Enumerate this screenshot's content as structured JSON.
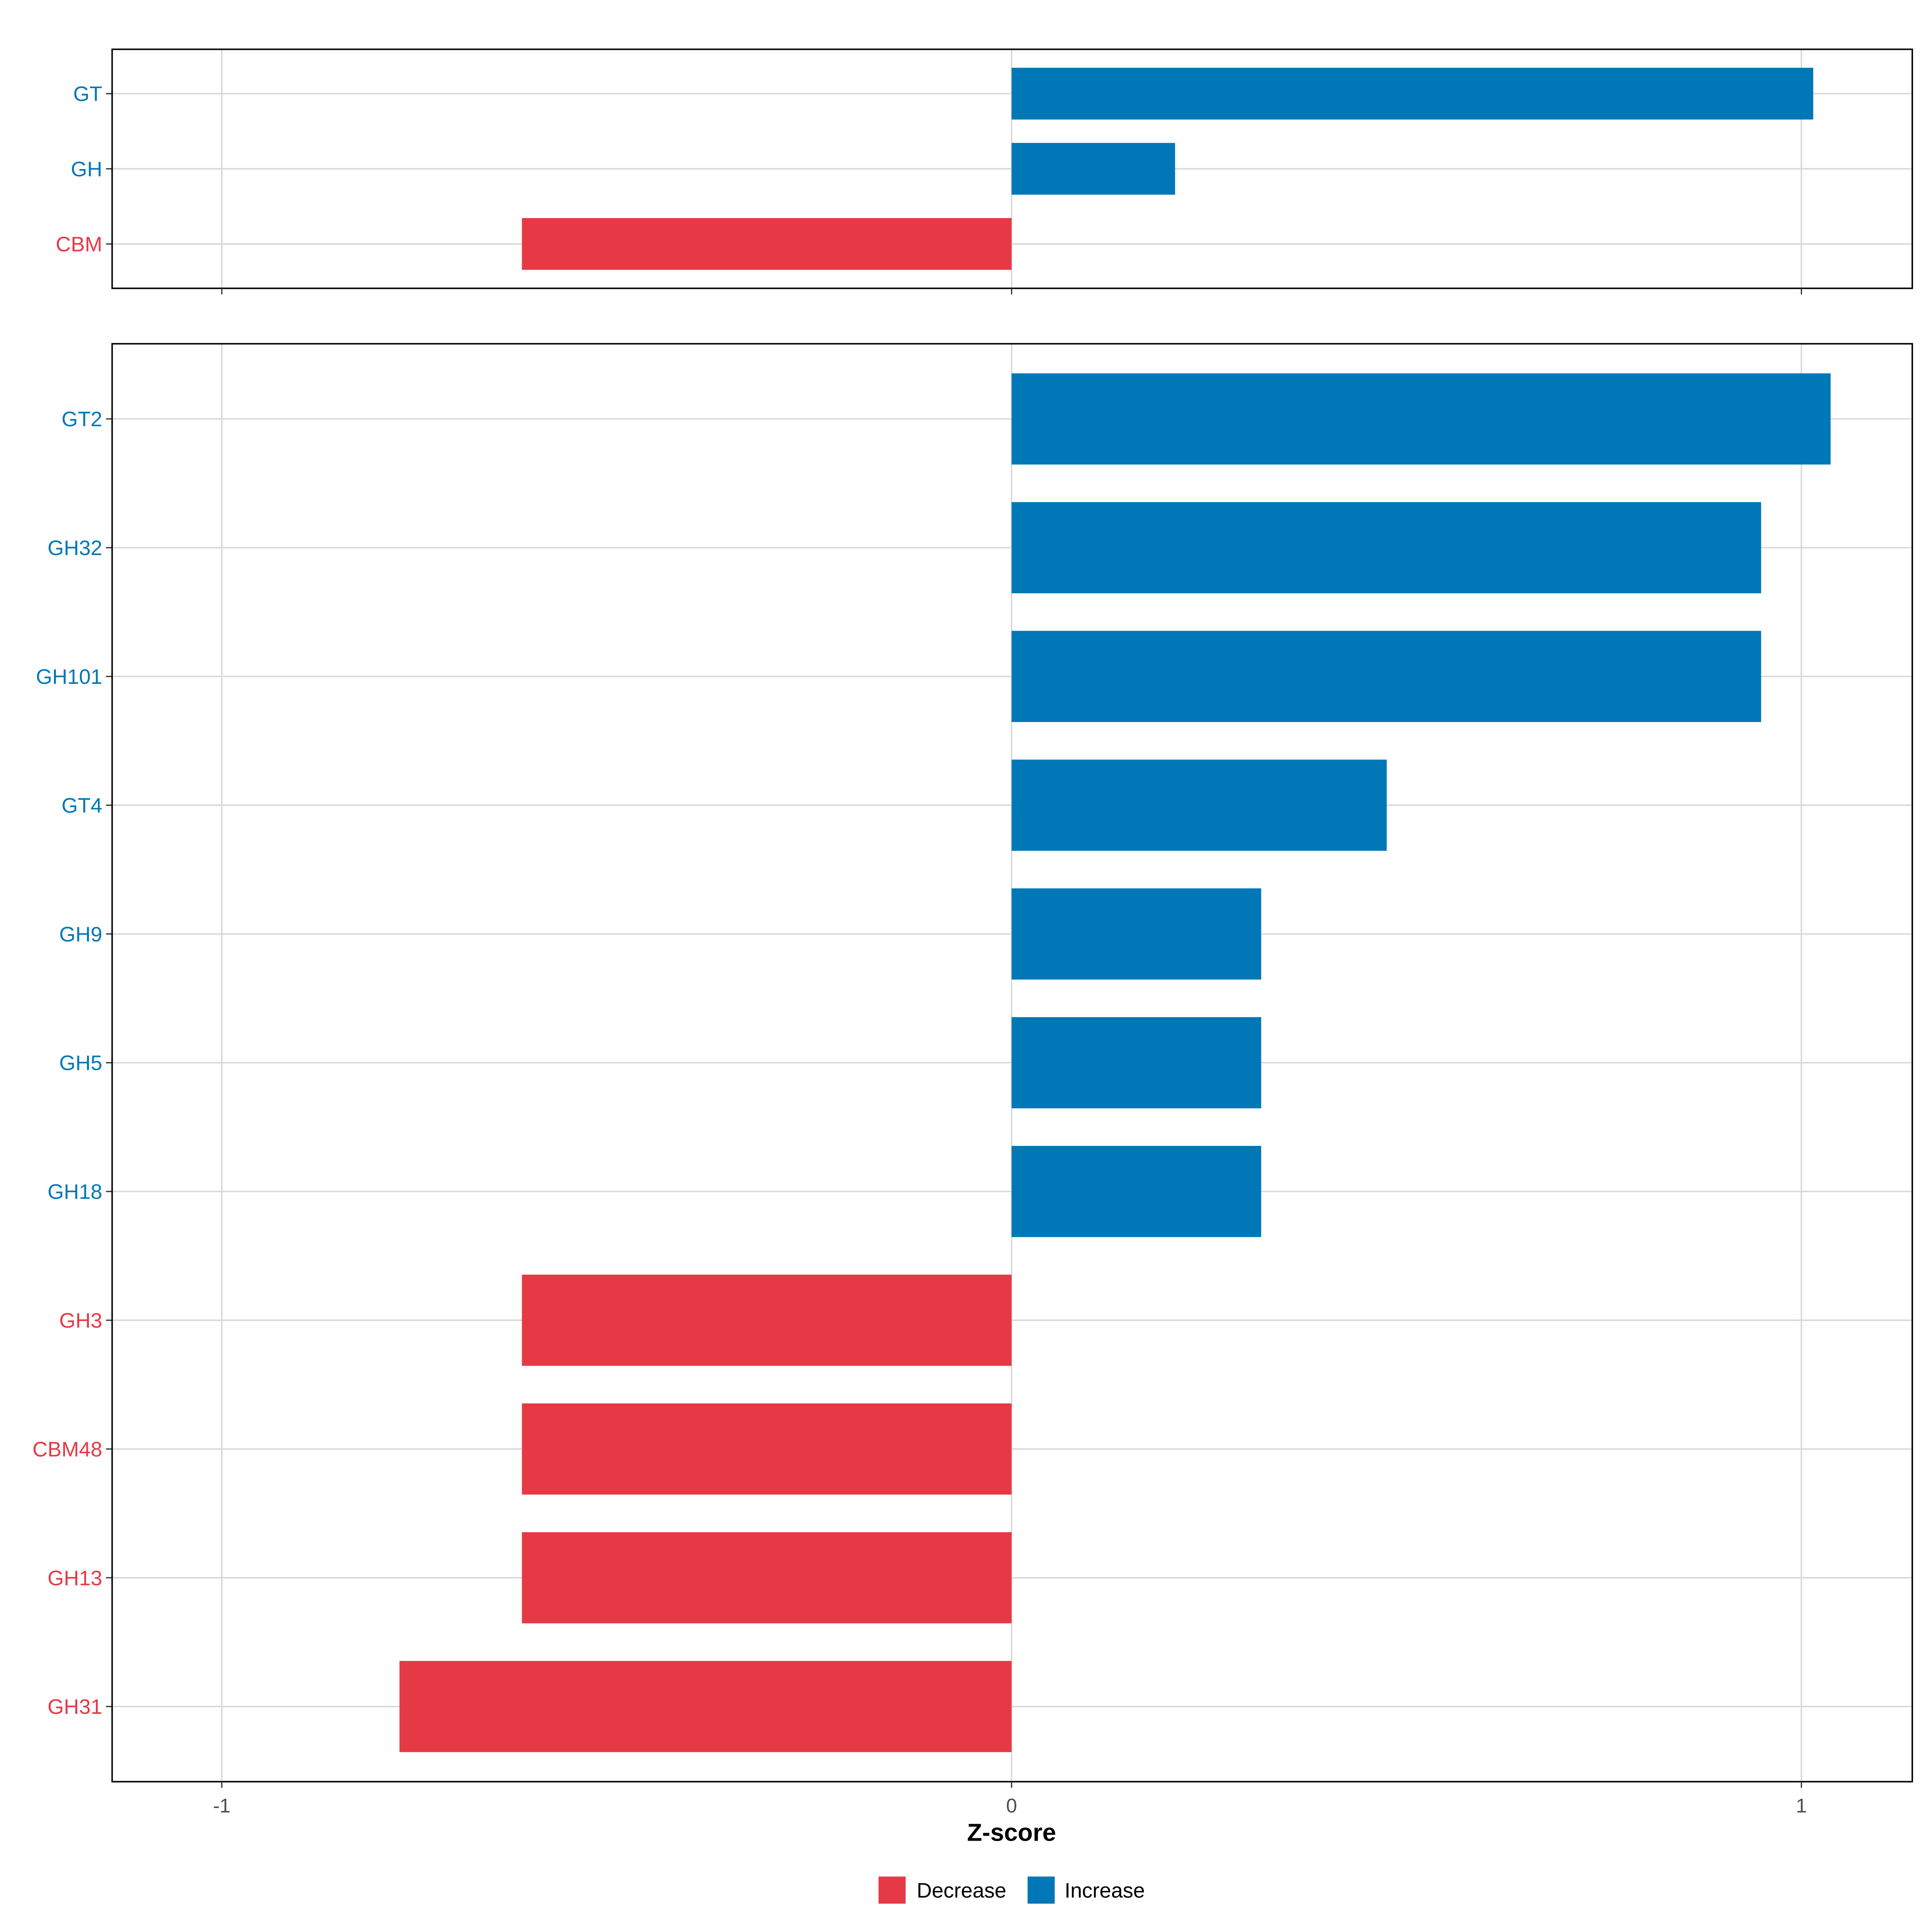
{
  "chart_data": [
    {
      "type": "bar",
      "orientation": "horizontal",
      "panel": "top",
      "categories": [
        "GT",
        "GH",
        "CBM"
      ],
      "values": [
        1.015,
        0.207,
        -0.62
      ],
      "xlim": [
        -1.14,
        1.14
      ]
    },
    {
      "type": "bar",
      "orientation": "horizontal",
      "panel": "bottom",
      "categories": [
        "GT2",
        "GH32",
        "GH101",
        "GT4",
        "GH9",
        "GH5",
        "GH18",
        "GH3",
        "CBM48",
        "GH13",
        "GH31"
      ],
      "values": [
        1.037,
        0.949,
        0.949,
        0.475,
        0.316,
        0.316,
        0.316,
        -0.62,
        -0.62,
        -0.62,
        -0.775
      ],
      "xlim": [
        -1.14,
        1.14
      ]
    }
  ],
  "x_ticks": [
    "-1",
    "0",
    "1"
  ],
  "x_tick_values": [
    -1,
    0,
    1
  ],
  "xlabel": "Z-score",
  "legend": {
    "placement": "bottom",
    "items": [
      {
        "label": "Decrease",
        "color": "#E63946"
      },
      {
        "label": "Increase",
        "color": "#0077B6"
      }
    ]
  },
  "colors": {
    "decrease": "#E63946",
    "increase": "#0077B6",
    "grid": "#D9D9D9"
  }
}
